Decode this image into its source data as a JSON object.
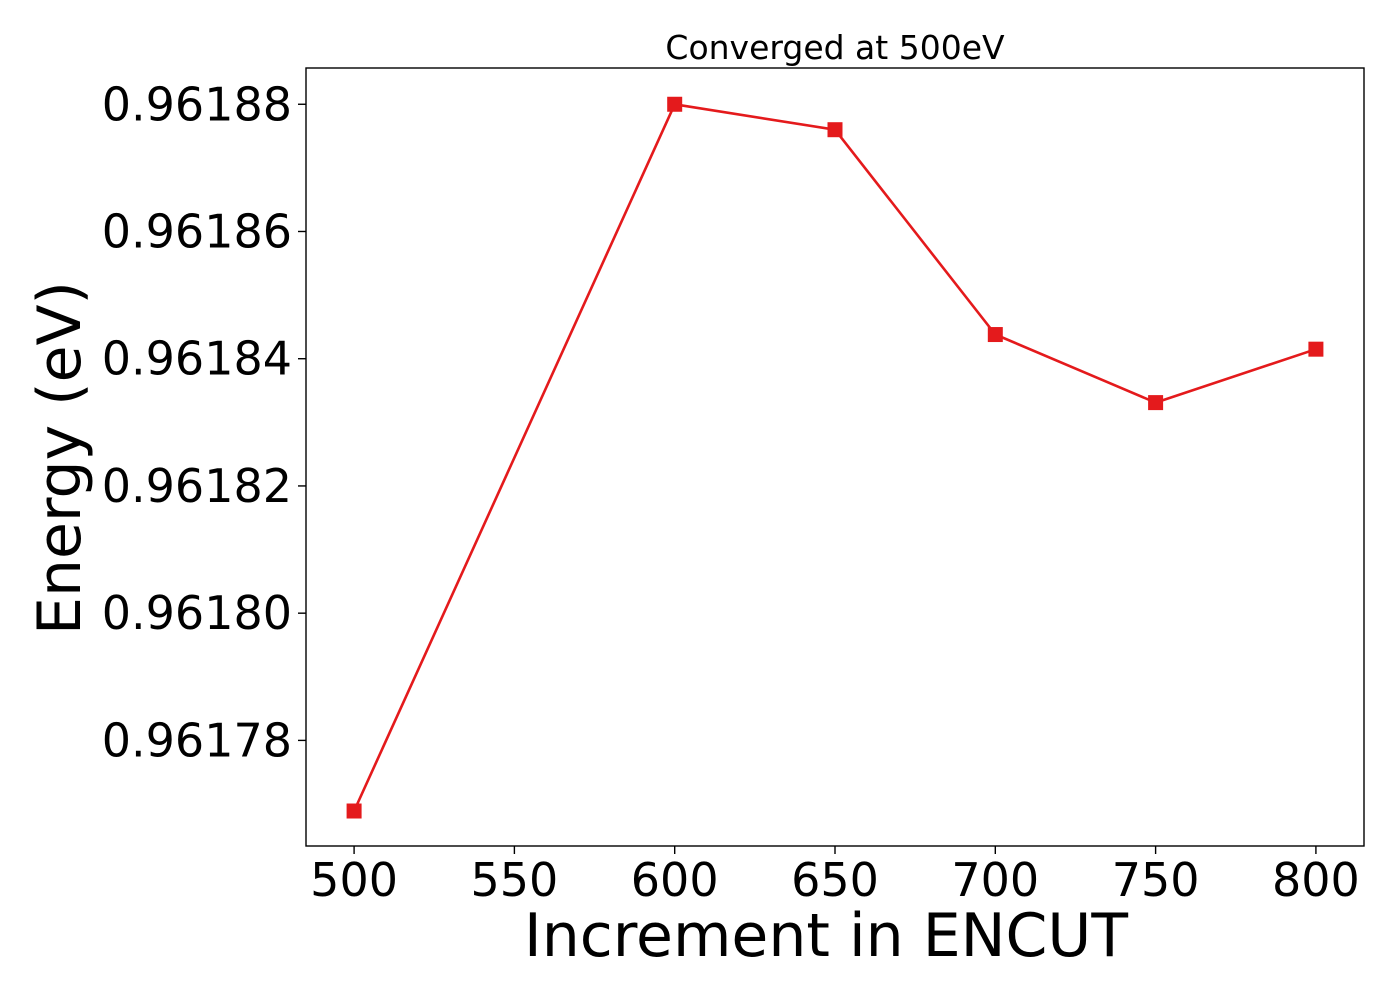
{
  "chart_data": {
    "type": "line",
    "title": "Converged at 500eV",
    "xlabel": "Increment in ENCUT",
    "ylabel": "Energy (eV)",
    "xlim": [
      485,
      815
    ],
    "ylim": [
      0.9617634,
      0.9618857
    ],
    "x_ticks": [
      500,
      550,
      600,
      650,
      700,
      750,
      800
    ],
    "x_tick_labels": [
      "500",
      "550",
      "600",
      "650",
      "700",
      "750",
      "800"
    ],
    "y_ticks": [
      0.96178,
      0.9618,
      0.96182,
      0.96184,
      0.96186,
      0.96188
    ],
    "y_tick_labels": [
      "0.96178",
      "0.96180",
      "0.96182",
      "0.96184",
      "0.96186",
      "0.96188"
    ],
    "grid": false,
    "legend": "none",
    "series": [
      {
        "color": "#e41a1c",
        "marker": "square",
        "x": [
          500,
          600,
          650,
          700,
          750,
          800
        ],
        "y": [
          0.9617689,
          0.96188,
          0.961876,
          0.9618438,
          0.9618331,
          0.9618415
        ]
      }
    ]
  }
}
